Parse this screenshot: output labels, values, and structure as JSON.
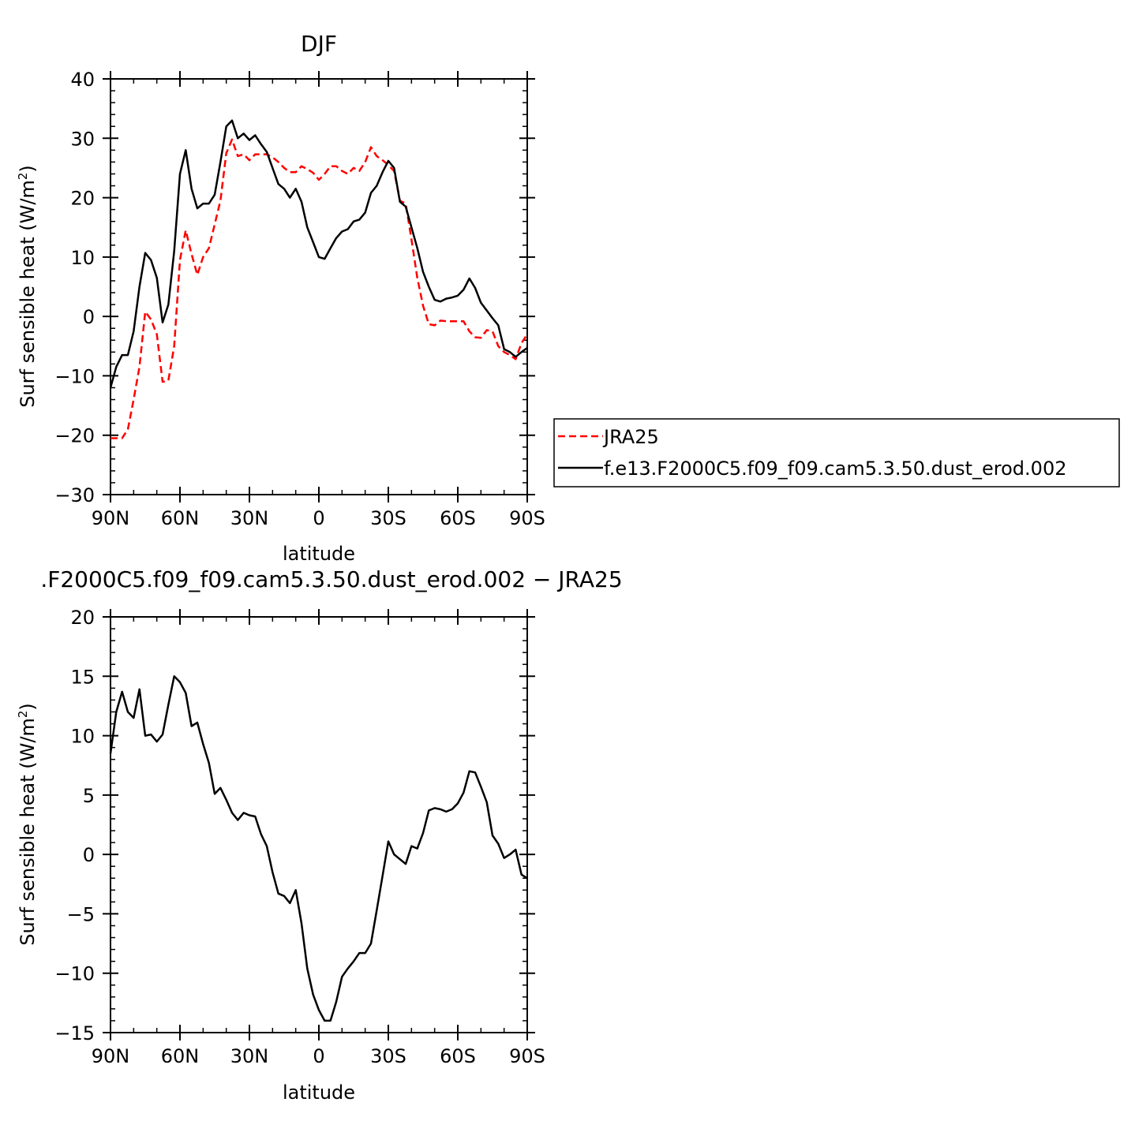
{
  "colors": {
    "model": "#000000",
    "obs": "#ff0000",
    "frame": "#000000",
    "background": "#ffffff"
  },
  "legend": {
    "entries": [
      {
        "label": "JRA25",
        "color": "#ff0000",
        "dash": true
      },
      {
        "label": "f.e13.F2000C5.f09_f09.cam5.3.50.dust_erod.002",
        "color": "#000000",
        "dash": false
      }
    ]
  },
  "chart_data": [
    {
      "type": "line",
      "title": "DJF",
      "xlabel": "latitude",
      "ylabel": "Surf sensible heat (W/m",
      "ylabel_sup": "2",
      "ylabel_close": ")",
      "xlim": [
        -90,
        90
      ],
      "ylim": [
        -30,
        40
      ],
      "xticks": [
        -90,
        -60,
        -30,
        0,
        30,
        60,
        90
      ],
      "xtick_labels": [
        "90N",
        "60N",
        "30N",
        "0",
        "30S",
        "60S",
        "90S"
      ],
      "yticks": [
        -30,
        -20,
        -10,
        0,
        10,
        20,
        30,
        40
      ],
      "ytick_labels": [
        "−30",
        "−20",
        "−10",
        "0",
        "10",
        "20",
        "30",
        "40"
      ],
      "series": [
        {
          "name": "JRA25",
          "color": "#ff0000",
          "dash": true,
          "x": [
            -90,
            -87.5,
            -85,
            -82.5,
            -80,
            -77.5,
            -75,
            -72.5,
            -70,
            -67.5,
            -65,
            -62.5,
            -60,
            -57.5,
            -55,
            -52.5,
            -50,
            -47.5,
            -45,
            -42.5,
            -40,
            -37.5,
            -35,
            -32.5,
            -30,
            -27.5,
            -25,
            -22.5,
            -20,
            -17.5,
            -15,
            -12.5,
            -10,
            -7.5,
            -5,
            -2.5,
            0,
            2.5,
            5,
            7.5,
            10,
            12.5,
            15,
            17.5,
            20,
            22.5,
            25,
            27.5,
            30,
            32.5,
            35,
            37.5,
            40,
            42.5,
            45,
            47.5,
            50,
            52.5,
            55,
            57.5,
            60,
            62.5,
            65,
            67.5,
            70,
            72.5,
            75,
            77.5,
            80,
            82.5,
            85,
            87.5,
            90
          ],
          "y": [
            -20.5,
            -20.5,
            -20.5,
            -19,
            -14,
            -8.5,
            0.8,
            -0.5,
            -3,
            -11,
            -10.8,
            -5,
            9.5,
            14.5,
            10.5,
            7,
            10,
            11.5,
            15.5,
            19.5,
            27.5,
            29.8,
            27,
            27.3,
            26.3,
            27.3,
            27.3,
            27.3,
            26.8,
            26,
            25,
            24.3,
            24.3,
            25.3,
            24.8,
            24.2,
            23,
            24,
            25.3,
            25.3,
            24.5,
            24,
            25,
            24.5,
            26,
            28.5,
            27,
            26.3,
            25.5,
            24.5,
            19.5,
            19,
            13,
            6.5,
            1.8,
            -1.3,
            -1.5,
            -0.7,
            -0.8,
            -0.8,
            -0.8,
            -0.8,
            -2.5,
            -3.5,
            -3.6,
            -2.3,
            -2.5,
            -5,
            -6,
            -6.5,
            -7.2,
            -4.5,
            -3
          ]
        },
        {
          "name": "f.e13.F2000C5.f09_f09.cam5.3.50.dust_erod.002",
          "color": "#000000",
          "dash": false,
          "x": [
            -90,
            -87.5,
            -85,
            -82.5,
            -80,
            -77.5,
            -75,
            -72.5,
            -70,
            -67.5,
            -65,
            -62.5,
            -60,
            -57.5,
            -55,
            -52.5,
            -50,
            -47.5,
            -45,
            -42.5,
            -40,
            -37.5,
            -35,
            -32.5,
            -30,
            -27.5,
            -25,
            -22.5,
            -20,
            -17.5,
            -15,
            -12.5,
            -10,
            -7.5,
            -5,
            -2.5,
            0,
            2.5,
            5,
            7.5,
            10,
            12.5,
            15,
            17.5,
            20,
            22.5,
            25,
            27.5,
            30,
            32.5,
            35,
            37.5,
            40,
            42.5,
            45,
            47.5,
            50,
            52.5,
            55,
            57.5,
            60,
            62.5,
            65,
            67.5,
            70,
            72.5,
            75,
            77.5,
            80,
            82.5,
            85,
            87.5,
            90
          ],
          "y": [
            -12,
            -8.5,
            -6.5,
            -6.5,
            -2.5,
            5,
            10.7,
            9.5,
            6.5,
            -1,
            2,
            11,
            24,
            28,
            21.5,
            18.2,
            19,
            19,
            20.5,
            26,
            32,
            33,
            30,
            30.8,
            29.7,
            30.5,
            29,
            27.7,
            25,
            22.3,
            21.5,
            20,
            21.5,
            19.3,
            15,
            12.5,
            10,
            9.7,
            11.5,
            13.2,
            14.3,
            14.7,
            16,
            16.3,
            17.5,
            20.8,
            22,
            24.3,
            26.2,
            25,
            19.3,
            18.5,
            15,
            11.5,
            7.5,
            5,
            2.8,
            2.5,
            3,
            3.2,
            3.5,
            4.5,
            6.4,
            4.8,
            2.3,
            1,
            -0.3,
            -1.5,
            -5.5,
            -6,
            -6.8,
            -6,
            -5.3
          ]
        }
      ]
    },
    {
      "type": "line",
      "title": ".F2000C5.f09_f09.cam5.3.50.dust_erod.002 − JRA25",
      "xlabel": "latitude",
      "ylabel": "Surf sensible heat (W/m",
      "ylabel_sup": "2",
      "ylabel_close": ")",
      "xlim": [
        -90,
        90
      ],
      "ylim": [
        -15,
        20
      ],
      "xticks": [
        -90,
        -60,
        -30,
        0,
        30,
        60,
        90
      ],
      "xtick_labels": [
        "90N",
        "60N",
        "30N",
        "0",
        "30S",
        "60S",
        "90S"
      ],
      "yticks": [
        -15,
        -10,
        -5,
        0,
        5,
        10,
        15,
        20
      ],
      "ytick_labels": [
        "−15",
        "−10",
        "−5",
        "0",
        "5",
        "10",
        "15",
        "20"
      ],
      "series": [
        {
          "color": "#000000",
          "dash": false,
          "x": [
            -90,
            -87.5,
            -85,
            -82.5,
            -80,
            -77.5,
            -75,
            -72.5,
            -70,
            -67.5,
            -65,
            -62.5,
            -60,
            -57.5,
            -55,
            -52.5,
            -50,
            -47.5,
            -45,
            -42.5,
            -40,
            -37.5,
            -35,
            -32.5,
            -30,
            -27.5,
            -25,
            -22.5,
            -20,
            -17.5,
            -15,
            -12.5,
            -10,
            -7.5,
            -5,
            -2.5,
            0,
            2.5,
            5,
            7.5,
            10,
            12.5,
            15,
            17.5,
            20,
            22.5,
            25,
            27.5,
            30,
            32.5,
            35,
            37.5,
            40,
            42.5,
            45,
            47.5,
            50,
            52.5,
            55,
            57.5,
            60,
            62.5,
            65,
            67.5,
            70,
            72.5,
            75,
            77.5,
            80,
            82.5,
            85,
            87.5,
            90
          ],
          "y": [
            8.5,
            12,
            13.7,
            12,
            11.5,
            13.9,
            10,
            10.1,
            9.5,
            10.1,
            12.6,
            15,
            14.5,
            13.6,
            10.8,
            11.1,
            9.3,
            7.7,
            5.1,
            5.6,
            4.6,
            3.5,
            2.9,
            3.5,
            3.3,
            3.2,
            1.7,
            0.7,
            -1.5,
            -3.3,
            -3.5,
            -4.1,
            -3,
            -5.8,
            -9.6,
            -11.8,
            -13.1,
            -14,
            -14,
            -12.4,
            -10.3,
            -9.6,
            -9,
            -8.3,
            -8.3,
            -7.5,
            -4.7,
            -1.8,
            1.1,
            0,
            -0.4,
            -0.8,
            0.7,
            0.5,
            1.8,
            3.7,
            3.9,
            3.8,
            3.6,
            3.8,
            4.3,
            5.2,
            7,
            6.9,
            5.7,
            4.4,
            1.6,
            0.9,
            -0.3,
            0,
            0.4,
            -1.7,
            -2
          ]
        }
      ]
    }
  ]
}
